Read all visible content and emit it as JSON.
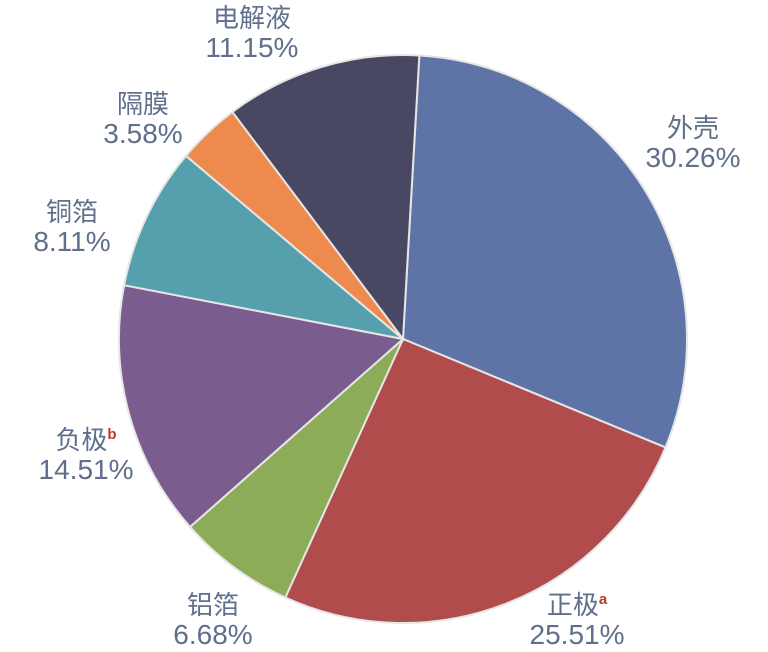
{
  "chart_data": {
    "type": "pie",
    "slices": [
      {
        "name": "外壳",
        "sup": "",
        "label": "30.26%",
        "value": 30.26,
        "color": "#5f74a6"
      },
      {
        "name": "正极",
        "sup": "a",
        "label": "25.51%",
        "value": 25.51,
        "color": "#b04c4c"
      },
      {
        "name": "铝箔",
        "sup": "",
        "label": "6.68%",
        "value": 6.68,
        "color": "#8cac58"
      },
      {
        "name": "负极",
        "sup": "b",
        "label": "14.51%",
        "value": 14.51,
        "color": "#7a5c8e"
      },
      {
        "name": "铜箔",
        "sup": "",
        "label": "8.11%",
        "value": 8.11,
        "color": "#56a0ae"
      },
      {
        "name": "隔膜",
        "sup": "",
        "label": "3.58%",
        "value": 3.58,
        "color": "#ee8a4e"
      },
      {
        "name": "电解液",
        "sup": "",
        "label": "11.15%",
        "value": 11.15,
        "color": "#484862"
      }
    ]
  }
}
